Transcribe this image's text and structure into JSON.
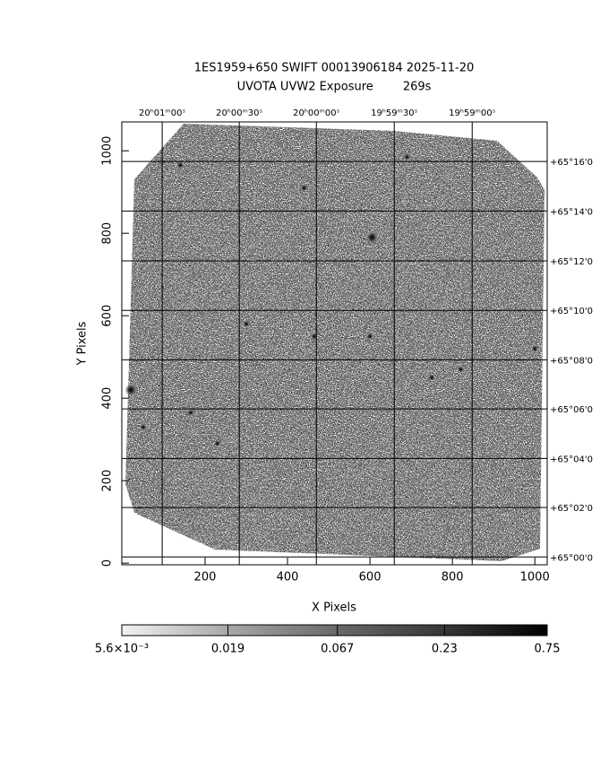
{
  "chart_data": {
    "type": "image",
    "title": "1ES1959+650 SWIFT 00013906184 2025-11-20",
    "subtitle": "UVOTA UVW2 Exposure        269s",
    "x_label": "X Pixels",
    "y_label": "Y Pixels",
    "xlim": [
      -2,
      1030
    ],
    "ylim": [
      -4,
      1070
    ],
    "xticks": [
      200,
      400,
      600,
      800,
      1000
    ],
    "yticks": [
      0,
      200,
      400,
      600,
      800,
      1000
    ],
    "ra_ticks": [
      {
        "value": 96,
        "label": "20ʰ01ᵐ00ˢ"
      },
      {
        "value": 283,
        "label": "20ʰ00ᵐ30ˢ"
      },
      {
        "value": 470,
        "label": "20ʰ00ᵐ00ˢ"
      },
      {
        "value": 659,
        "label": "19ʰ59ᵐ30ˢ"
      },
      {
        "value": 848,
        "label": "19ʰ59ᵐ00ˢ"
      }
    ],
    "dec_ticks": [
      {
        "value": 974,
        "label": "+65°16'0"
      },
      {
        "value": 854,
        "label": "+65°14'0"
      },
      {
        "value": 733,
        "label": "+65°12'0"
      },
      {
        "value": 613,
        "label": "+65°10'0"
      },
      {
        "value": 493,
        "label": "+65°08'0"
      },
      {
        "value": 374,
        "label": "+65°06'0"
      },
      {
        "value": 254,
        "label": "+65°04'0"
      },
      {
        "value": 135,
        "label": "+65°02'0"
      },
      {
        "value": 15,
        "label": "+65°00'0"
      }
    ],
    "sources": {
      "x": [
        605,
        20,
        465,
        750,
        165,
        140,
        690,
        600,
        300,
        50,
        1000,
        440,
        230,
        820
      ],
      "y": [
        790,
        420,
        550,
        450,
        365,
        965,
        985,
        550,
        580,
        330,
        520,
        910,
        290,
        470
      ]
    },
    "colorbar": {
      "log": true,
      "lim": [
        0.0056,
        0.75
      ],
      "ticks": [
        {
          "value": 0.0056,
          "label": "5.6×10⁻³"
        },
        0.019,
        0.067,
        0.23,
        0.75
      ]
    }
  }
}
